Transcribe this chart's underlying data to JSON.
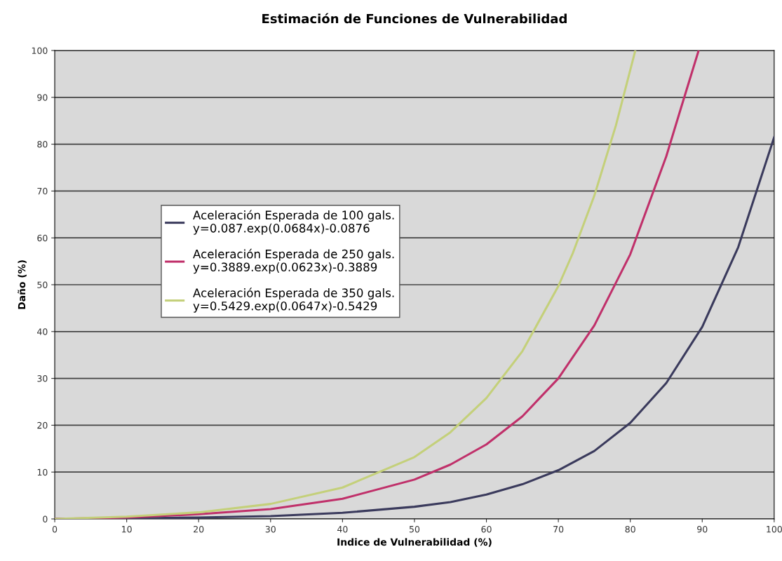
{
  "chart_data": {
    "type": "line",
    "title": "Estimación de Funciones de Vulnerabilidad",
    "xlabel": "Indice de Vulnerabilidad (%)",
    "ylabel": "Daño (%)",
    "xlim": [
      0,
      100
    ],
    "xticks": [
      0,
      10,
      20,
      30,
      40,
      50,
      60,
      70,
      80,
      90,
      100
    ],
    "ylim": [
      0,
      100
    ],
    "yticks": [
      0,
      10,
      20,
      30,
      40,
      50,
      60,
      70,
      80,
      90,
      100
    ],
    "grid": "y",
    "legend": "left",
    "marker": "none",
    "line_style": "solid",
    "series": [
      {
        "name": "Aceleración Esperada de 100 gals.\ny=0.087.exp(0.0684x)-0.0876",
        "color": "#3a3a5c",
        "x": [
          0,
          10,
          20,
          30,
          40,
          50,
          55,
          60,
          65,
          70,
          75,
          80,
          85,
          90,
          95,
          100
        ],
        "values": [
          0,
          0.1,
          0.3,
          0.6,
          1.3,
          2.6,
          3.6,
          5.2,
          7.4,
          10.4,
          14.5,
          20.5,
          29,
          41,
          58,
          81.5
        ]
      },
      {
        "name": "Aceleración Esperada de 250 gals.\ny=0.3889.exp(0.0623x)-0.3889",
        "color": "#c0306a",
        "x": [
          0,
          10,
          20,
          30,
          40,
          50,
          55,
          60,
          65,
          70,
          75,
          80,
          85,
          87,
          89.5
        ],
        "values": [
          0,
          0.3,
          1,
          2.1,
          4.3,
          8.4,
          11.6,
          15.9,
          21.9,
          30,
          41.3,
          56.5,
          77.4,
          87.5,
          100
        ]
      },
      {
        "name": "Aceleración Esperada de 350 gals.\ny=0.5429.exp(0.0647x)-0.5429",
        "color": "#c4d07a",
        "x": [
          0,
          10,
          20,
          30,
          40,
          50,
          55,
          60,
          65,
          70,
          72,
          75,
          78,
          80.7
        ],
        "values": [
          0,
          0.5,
          1.4,
          3.2,
          6.7,
          13.2,
          18.5,
          25.8,
          35.8,
          49.7,
          56.7,
          69,
          84,
          100
        ]
      }
    ]
  }
}
